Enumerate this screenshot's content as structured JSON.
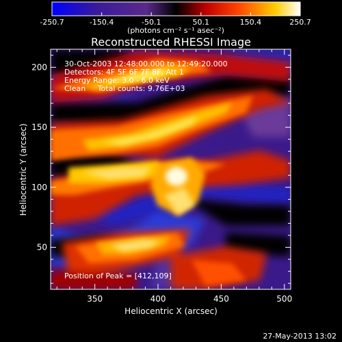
{
  "plot": {
    "title": "Reconstructed RHESSI Image",
    "xlabel": "Heliocentric X (arcsec)",
    "ylabel": "Heliocentric Y (arcsec)",
    "x_ticks": [
      "350",
      "400",
      "450",
      "500"
    ],
    "y_ticks": [
      "50",
      "100",
      "150",
      "200"
    ],
    "x_range": [
      315,
      505
    ],
    "y_range": [
      15,
      215
    ]
  },
  "colorbar": {
    "ticks": [
      "-250.7",
      "-150.4",
      "-50.1",
      "50.1",
      "150.4",
      "250.7"
    ],
    "range": [
      -250.7,
      250.7
    ],
    "unit_label": "(photons cm⁻² s⁻¹ asec⁻²)"
  },
  "annotations": {
    "time_range": "30-Oct-2003 12:48:00.000 to 12:49:20.000",
    "detectors": "Detectors: 4F 5F 6F 7F 8F, Att 1",
    "energy": "Energy Range: 3.0 - 6.0 keV",
    "method": "Clean     Total counts: 9.76E+03",
    "peak": "Position of Peak = [412,109]"
  },
  "footer": {
    "timestamp": "27-May-2013 13:02"
  },
  "colors": {
    "colormap": [
      "#0000ff",
      "#3a1a9a",
      "#5a2a8c",
      "#000000",
      "#c00000",
      "#ff4400",
      "#ffcc00",
      "#ffffff"
    ]
  }
}
